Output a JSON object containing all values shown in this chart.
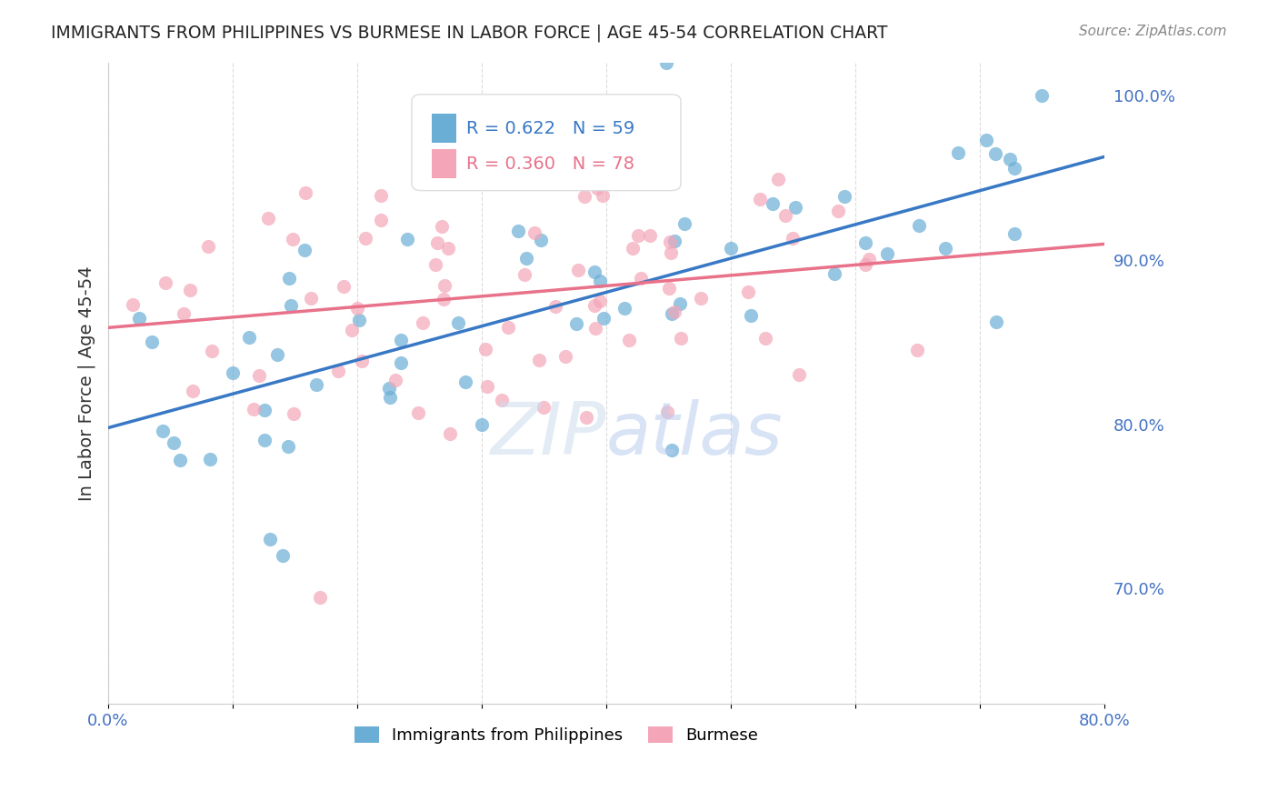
{
  "title": "IMMIGRANTS FROM PHILIPPINES VS BURMESE IN LABOR FORCE | AGE 45-54 CORRELATION CHART",
  "source": "Source: ZipAtlas.com",
  "ylabel_left": "In Labor Force | Age 45-54",
  "x_min": 0.0,
  "x_max": 0.8,
  "y_min": 0.63,
  "y_max": 1.02,
  "yticks_right": [
    0.7,
    0.8,
    0.9,
    1.0
  ],
  "ytick_labels_right": [
    "70.0%",
    "80.0%",
    "90.0%",
    "100.0%"
  ],
  "xticks": [
    0.0,
    0.1,
    0.2,
    0.3,
    0.4,
    0.5,
    0.6,
    0.7,
    0.8
  ],
  "xtick_labels": [
    "0.0%",
    "",
    "",
    "",
    "",
    "",
    "",
    "",
    "80.0%"
  ],
  "legend_r1": "R = 0.622",
  "legend_n1": "N = 59",
  "legend_r2": "R = 0.360",
  "legend_n2": "N = 78",
  "color_philippines": "#6aaed6",
  "color_burmese": "#f4a6b8",
  "color_line_philippines": "#3878c5",
  "color_line_burmese": "#e8728a",
  "color_dashed_line": "#d4a0a8",
  "color_axis_labels": "#4472c4",
  "color_title": "#222222",
  "color_grid": "#cccccc",
  "color_watermark_zip": "#cddcee",
  "color_watermark_atlas": "#b8ccee",
  "legend_label_philippines": "Immigrants from Philippines",
  "legend_label_burmese": "Burmese"
}
